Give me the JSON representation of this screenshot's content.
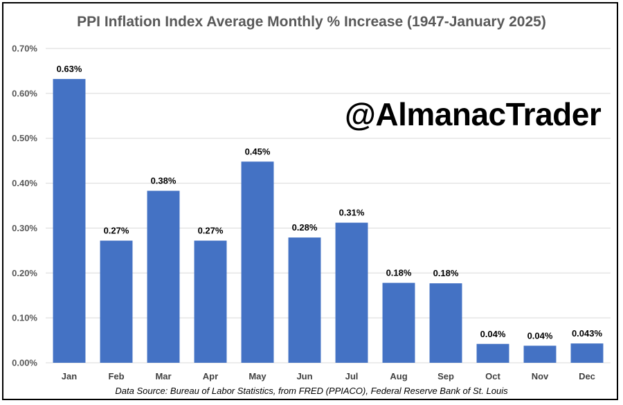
{
  "chart_data": {
    "type": "bar",
    "title": "PPI Inflation Index Average Monthly % Increase (1947-January 2025)",
    "categories": [
      "Jan",
      "Feb",
      "Mar",
      "Apr",
      "May",
      "Jun",
      "Jul",
      "Aug",
      "Sep",
      "Oct",
      "Nov",
      "Dec"
    ],
    "values": [
      0.632,
      0.272,
      0.383,
      0.272,
      0.448,
      0.279,
      0.312,
      0.178,
      0.177,
      0.042,
      0.038,
      0.043
    ],
    "data_labels": [
      "0.63%",
      "0.27%",
      "0.38%",
      "0.27%",
      "0.45%",
      "0.28%",
      "0.31%",
      "0.18%",
      "0.18%",
      "0.04%",
      "0.04%",
      "0.043%"
    ],
    "xlabel": "",
    "ylabel": "",
    "ylim": [
      0,
      0.7
    ],
    "yticks": [
      0,
      0.1,
      0.2,
      0.3,
      0.4,
      0.5,
      0.6,
      0.7
    ],
    "ytick_labels": [
      "0.00%",
      "0.10%",
      "0.20%",
      "0.30%",
      "0.40%",
      "0.50%",
      "0.60%",
      "0.70%"
    ],
    "grid": true,
    "legend": "none",
    "bar_color": "#4472C4",
    "grid_color": "#D9D9D9"
  },
  "watermark": "@AlmanacTrader",
  "source_note": "Data Source: Bureau of Labor Statistics, from FRED (PPIACO), Federal Reserve Bank of St. Louis"
}
